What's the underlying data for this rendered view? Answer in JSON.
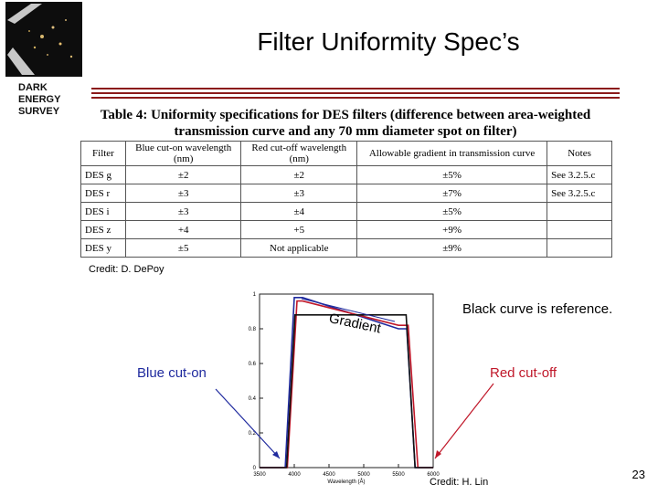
{
  "slide": {
    "title": "Filter Uniformity Spec’s",
    "page_number": "23"
  },
  "logo": {
    "line1": "DARK ENERGY",
    "line2": "SURVEY"
  },
  "table": {
    "caption_line1": "Table 4: Uniformity specifications for DES filters (difference between area-weighted",
    "caption_line2": "transmission curve and any 70 mm diameter spot on filter)",
    "headers": [
      "Filter",
      "Blue cut-on wavelength (nm)",
      "Red cut-off wavelength (nm)",
      "Allowable gradient in transmission curve",
      "Notes"
    ],
    "rows": [
      [
        "DES g",
        "±2",
        "±2",
        "±5%",
        "See 3.2.5.c"
      ],
      [
        "DES r",
        "±3",
        "±3",
        "±7%",
        "See 3.2.5.c"
      ],
      [
        "DES i",
        "±3",
        "±4",
        "±5%",
        ""
      ],
      [
        "DES z",
        "+4",
        "+5",
        "+9%",
        ""
      ],
      [
        "DES y",
        "±5",
        "Not applicable",
        "±9%",
        ""
      ]
    ],
    "credit": "Credit:  D. DePoy"
  },
  "figure": {
    "annotation_reference": "Black curve is reference.",
    "annotation_gradient": "Gradient",
    "annotation_blue": "Blue cut-on",
    "annotation_red": "Red cut-off",
    "credit": "Credit:  H. Lin",
    "colors": {
      "blue": "#1f2a9e",
      "red": "#c0182a",
      "black": "#111111"
    }
  },
  "chart_data": {
    "type": "line",
    "xlabel": "Wavelength (Å)",
    "ylabel": "",
    "xlim": [
      3500,
      6000
    ],
    "ylim": [
      0,
      1
    ],
    "x_ticks": [
      "3500",
      "4000",
      "4500",
      "5000",
      "5500",
      "6000"
    ],
    "y_ticks": [
      "0",
      "0.2",
      "0.4",
      "0.6",
      "0.8",
      "1"
    ],
    "series": [
      {
        "color": "#1f2a9e",
        "x": [
          3500,
          3870,
          4000,
          4120,
          5500,
          5620,
          5740,
          6000
        ],
        "y": [
          0,
          0,
          0.98,
          0.98,
          0.8,
          0.8,
          0,
          0
        ]
      },
      {
        "color": "#c0182a",
        "x": [
          3500,
          3900,
          4040,
          4120,
          5500,
          5640,
          5780,
          6000
        ],
        "y": [
          0,
          0,
          0.96,
          0.96,
          0.82,
          0.82,
          0,
          0
        ]
      },
      {
        "color": "#111111",
        "x": [
          3500,
          3890,
          4010,
          5610,
          5740,
          6000
        ],
        "y": [
          0,
          0,
          0.88,
          0.88,
          0,
          0
        ]
      }
    ]
  }
}
